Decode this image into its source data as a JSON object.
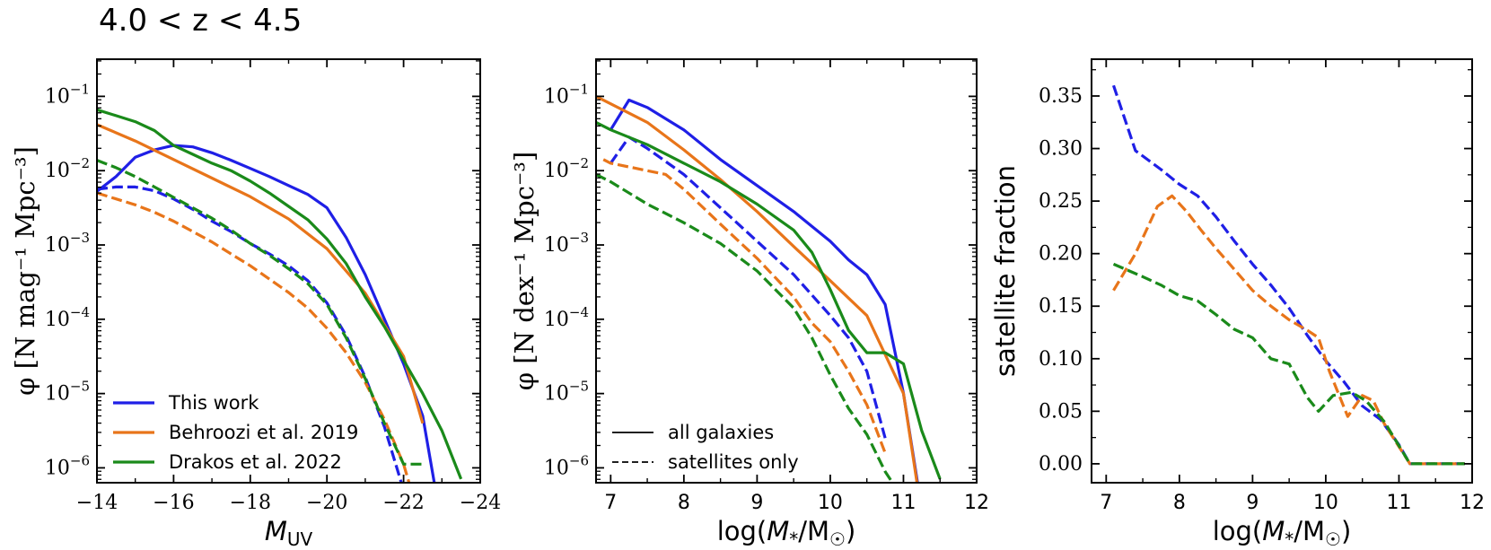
{
  "title": "4.0 < z < 4.5",
  "colors": {
    "this_work": "#1f1fe6",
    "behroozi": "#e8751a",
    "drakos": "#1a8a1a"
  },
  "chart_data": [
    {
      "id": "uvlf",
      "type": "line",
      "xlabel": "M_UV",
      "ylabel": "φ [N mag⁻¹ Mpc⁻³]",
      "xlim": [
        -14,
        -24
      ],
      "ylim_log10": [
        -6.2,
        -0.5
      ],
      "yscale": "log",
      "xticks": [
        -14,
        -16,
        -18,
        -20,
        -22,
        -24
      ],
      "xtick_labels": [
        "−14",
        "−16",
        "−18",
        "−20",
        "−22",
        "−24"
      ],
      "yticks_exp": [
        -6,
        -5,
        -4,
        -3,
        -2,
        -1
      ],
      "legend": {
        "position": "lower-left",
        "entries": [
          {
            "label": "This work",
            "color_key": "this_work"
          },
          {
            "label": "Behroozi et al. 2019",
            "color_key": "behroozi"
          },
          {
            "label": "Drakos et al. 2022",
            "color_key": "drakos"
          }
        ]
      },
      "series": [
        {
          "name": "This work (all galaxies)",
          "color_key": "this_work",
          "style": "solid",
          "x": [
            -14,
            -14.5,
            -15,
            -15.5,
            -16,
            -16.5,
            -17,
            -17.5,
            -18,
            -18.5,
            -19,
            -19.5,
            -20,
            -20.5,
            -21,
            -21.5,
            -22,
            -22.5,
            -22.8
          ],
          "y_log10": [
            -2.28,
            -2.08,
            -1.82,
            -1.72,
            -1.66,
            -1.68,
            -1.76,
            -1.86,
            -1.97,
            -2.08,
            -2.2,
            -2.32,
            -2.5,
            -2.9,
            -3.4,
            -4.0,
            -4.6,
            -5.3,
            -6.2
          ]
        },
        {
          "name": "This work (satellites)",
          "color_key": "this_work",
          "style": "dashed",
          "x": [
            -14,
            -14.5,
            -15,
            -15.5,
            -16,
            -16.5,
            -17,
            -17.5,
            -18,
            -18.5,
            -19,
            -19.5,
            -20,
            -20.5,
            -21,
            -21.5,
            -22
          ],
          "y_log10": [
            -2.25,
            -2.22,
            -2.22,
            -2.27,
            -2.38,
            -2.52,
            -2.68,
            -2.82,
            -2.98,
            -3.12,
            -3.28,
            -3.48,
            -3.78,
            -4.22,
            -4.78,
            -5.45,
            -6.3
          ]
        },
        {
          "name": "Behroozi et al. 2019 (all galaxies)",
          "color_key": "behroozi",
          "style": "solid",
          "x": [
            -14,
            -15,
            -16,
            -17,
            -18,
            -19,
            -20,
            -21,
            -22,
            -22.5
          ],
          "y_log10": [
            -1.38,
            -1.6,
            -1.85,
            -2.1,
            -2.35,
            -2.65,
            -3.05,
            -3.65,
            -4.5,
            -5.4
          ]
        },
        {
          "name": "Behroozi et al. 2019 (satellites)",
          "color_key": "behroozi",
          "style": "dashed",
          "x": [
            -14,
            -14.5,
            -15,
            -15.5,
            -16,
            -16.5,
            -17,
            -17.5,
            -18,
            -18.5,
            -19,
            -19.5,
            -20,
            -20.5,
            -21,
            -21.5,
            -22,
            -22.2
          ],
          "y_log10": [
            -2.3,
            -2.38,
            -2.46,
            -2.56,
            -2.68,
            -2.82,
            -2.96,
            -3.12,
            -3.28,
            -3.46,
            -3.64,
            -3.85,
            -4.12,
            -4.45,
            -4.85,
            -5.35,
            -5.95,
            -6.3
          ]
        },
        {
          "name": "Drakos et al. 2022 (all galaxies)",
          "color_key": "drakos",
          "style": "solid",
          "x": [
            -14,
            -14.5,
            -15,
            -15.5,
            -16,
            -16.5,
            -17,
            -17.5,
            -18,
            -18.5,
            -19,
            -19.5,
            -20,
            -20.5,
            -21,
            -21.5,
            -22,
            -22.5,
            -23,
            -23.5
          ],
          "y_log10": [
            -1.18,
            -1.26,
            -1.34,
            -1.46,
            -1.66,
            -1.78,
            -1.9,
            -2.0,
            -2.14,
            -2.3,
            -2.48,
            -2.66,
            -2.92,
            -3.25,
            -3.7,
            -4.1,
            -4.55,
            -5.0,
            -5.5,
            -6.15
          ]
        },
        {
          "name": "Drakos et al. 2022 (satellites)",
          "color_key": "drakos",
          "style": "dashed",
          "x": [
            -14,
            -14.5,
            -15,
            -15.5,
            -16,
            -16.5,
            -17,
            -17.5,
            -18,
            -18.5,
            -19,
            -19.5,
            -20,
            -20.5,
            -21,
            -21.5,
            -22,
            -22.5
          ],
          "y_log10": [
            -1.86,
            -1.96,
            -2.08,
            -2.22,
            -2.36,
            -2.5,
            -2.64,
            -2.8,
            -2.98,
            -3.14,
            -3.32,
            -3.52,
            -3.8,
            -4.25,
            -4.8,
            -5.4,
            -5.95,
            -5.95
          ]
        }
      ]
    },
    {
      "id": "smf",
      "type": "line",
      "xlabel": "log(M*/M☉)",
      "ylabel": "φ [N dex⁻¹ Mpc⁻³]",
      "xlim": [
        6.8,
        12
      ],
      "ylim_log10": [
        -6.2,
        -0.5
      ],
      "yscale": "log",
      "xticks": [
        7,
        8,
        9,
        10,
        11,
        12
      ],
      "xtick_labels": [
        "7",
        "8",
        "9",
        "10",
        "11",
        "12"
      ],
      "yticks_exp": [
        -6,
        -5,
        -4,
        -3,
        -2,
        -1
      ],
      "legend": {
        "position": "lower-left",
        "entries": [
          {
            "label": "all galaxies",
            "style": "solid"
          },
          {
            "label": "satellites only",
            "style": "dashed"
          }
        ]
      },
      "series": [
        {
          "name": "This work (all galaxies)",
          "color_key": "this_work",
          "style": "solid",
          "x": [
            7.0,
            7.25,
            7.5,
            8.0,
            8.5,
            9.0,
            9.5,
            10.0,
            10.25,
            10.5,
            10.75,
            11.0,
            11.2
          ],
          "y_log10": [
            -1.45,
            -1.05,
            -1.15,
            -1.45,
            -1.85,
            -2.2,
            -2.55,
            -2.95,
            -3.2,
            -3.4,
            -3.8,
            -5.0,
            -6.25
          ]
        },
        {
          "name": "This work (satellites)",
          "color_key": "this_work",
          "style": "dashed",
          "x": [
            7.0,
            7.25,
            7.5,
            8.0,
            8.5,
            9.0,
            9.5,
            10.0,
            10.25,
            10.5,
            10.75
          ],
          "y_log10": [
            -1.9,
            -1.55,
            -1.7,
            -2.05,
            -2.5,
            -2.95,
            -3.4,
            -3.95,
            -4.25,
            -4.7,
            -5.6
          ]
        },
        {
          "name": "Behroozi et al. 2019 (all galaxies)",
          "color_key": "behroozi",
          "style": "solid",
          "x": [
            6.8,
            7.0,
            7.5,
            8.0,
            8.5,
            9.0,
            9.5,
            10.0,
            10.5,
            11.0,
            11.2
          ],
          "y_log10": [
            -1.0,
            -1.1,
            -1.35,
            -1.72,
            -2.12,
            -2.55,
            -3.02,
            -3.48,
            -3.95,
            -5.0,
            -6.3
          ]
        },
        {
          "name": "Behroozi et al. 2019 (satellites)",
          "color_key": "behroozi",
          "style": "dashed",
          "x": [
            6.9,
            7.0,
            7.5,
            7.75,
            8.0,
            8.5,
            9.0,
            9.5,
            9.75,
            10.0,
            10.25,
            10.5,
            10.75
          ],
          "y_log10": [
            -1.85,
            -1.9,
            -2.0,
            -2.05,
            -2.25,
            -2.72,
            -3.18,
            -3.7,
            -4.05,
            -4.3,
            -4.7,
            -5.15,
            -5.8
          ]
        },
        {
          "name": "Drakos et al. 2022 (all galaxies)",
          "color_key": "drakos",
          "style": "solid",
          "x": [
            6.8,
            7.0,
            7.5,
            8.0,
            8.5,
            9.0,
            9.5,
            9.75,
            10.0,
            10.25,
            10.5,
            10.75,
            11.0,
            11.25,
            11.5
          ],
          "y_log10": [
            -1.35,
            -1.45,
            -1.65,
            -1.9,
            -2.15,
            -2.45,
            -2.8,
            -3.1,
            -3.6,
            -4.15,
            -4.45,
            -4.45,
            -4.6,
            -5.5,
            -6.15
          ]
        },
        {
          "name": "Drakos et al. 2022 (satellites)",
          "color_key": "drakos",
          "style": "dashed",
          "x": [
            6.8,
            7.0,
            7.5,
            8.0,
            8.5,
            9.0,
            9.5,
            9.75,
            10.0,
            10.25,
            10.5,
            10.75,
            10.85
          ],
          "y_log10": [
            -2.05,
            -2.15,
            -2.45,
            -2.7,
            -2.98,
            -3.35,
            -3.85,
            -4.25,
            -4.75,
            -5.2,
            -5.55,
            -6.05,
            -6.2
          ]
        }
      ]
    },
    {
      "id": "satfrac",
      "type": "line",
      "xlabel": "log(M*/M☉)",
      "ylabel": "satellite fraction",
      "xlim": [
        6.8,
        12
      ],
      "ylim": [
        -0.018,
        0.385
      ],
      "yscale": "linear",
      "xticks": [
        7,
        8,
        9,
        10,
        11,
        12
      ],
      "xtick_labels": [
        "7",
        "8",
        "9",
        "10",
        "11",
        "12"
      ],
      "yticks": [
        0.0,
        0.05,
        0.1,
        0.15,
        0.2,
        0.25,
        0.3,
        0.35
      ],
      "ytick_labels": [
        "0.00",
        "0.05",
        "0.10",
        "0.15",
        "0.20",
        "0.25",
        "0.30",
        "0.35"
      ],
      "series": [
        {
          "name": "This work",
          "color_key": "this_work",
          "style": "dashed",
          "x": [
            7.1,
            7.4,
            7.75,
            8.0,
            8.25,
            8.5,
            8.75,
            9.0,
            9.25,
            9.5,
            9.75,
            10.0,
            10.25,
            10.5,
            10.75,
            11.0,
            11.15,
            11.5,
            11.9
          ],
          "y": [
            0.36,
            0.298,
            0.28,
            0.266,
            0.255,
            0.235,
            0.212,
            0.19,
            0.17,
            0.148,
            0.122,
            0.098,
            0.078,
            0.055,
            0.042,
            0.018,
            0.0,
            0.0,
            0.0
          ]
        },
        {
          "name": "Behroozi et al. 2019",
          "color_key": "behroozi",
          "style": "dashed",
          "x": [
            7.1,
            7.4,
            7.7,
            7.9,
            8.1,
            8.3,
            8.5,
            8.75,
            9.0,
            9.25,
            9.5,
            9.75,
            9.9,
            10.05,
            10.3,
            10.5,
            10.65,
            10.8,
            11.15,
            11.5,
            11.9
          ],
          "y": [
            0.165,
            0.2,
            0.245,
            0.255,
            0.24,
            0.222,
            0.205,
            0.185,
            0.165,
            0.15,
            0.137,
            0.127,
            0.12,
            0.088,
            0.045,
            0.065,
            0.06,
            0.038,
            0.0,
            0.0,
            0.0
          ]
        },
        {
          "name": "Drakos et al. 2022",
          "color_key": "drakos",
          "style": "dashed",
          "x": [
            7.1,
            7.5,
            7.75,
            8.0,
            8.25,
            8.5,
            8.75,
            9.0,
            9.25,
            9.5,
            9.75,
            9.9,
            10.1,
            10.35,
            10.55,
            10.8,
            11.15,
            11.5,
            11.9
          ],
          "y": [
            0.19,
            0.178,
            0.17,
            0.16,
            0.155,
            0.142,
            0.128,
            0.12,
            0.1,
            0.095,
            0.063,
            0.05,
            0.065,
            0.068,
            0.06,
            0.04,
            0.0,
            0.0,
            0.0
          ]
        }
      ]
    }
  ]
}
